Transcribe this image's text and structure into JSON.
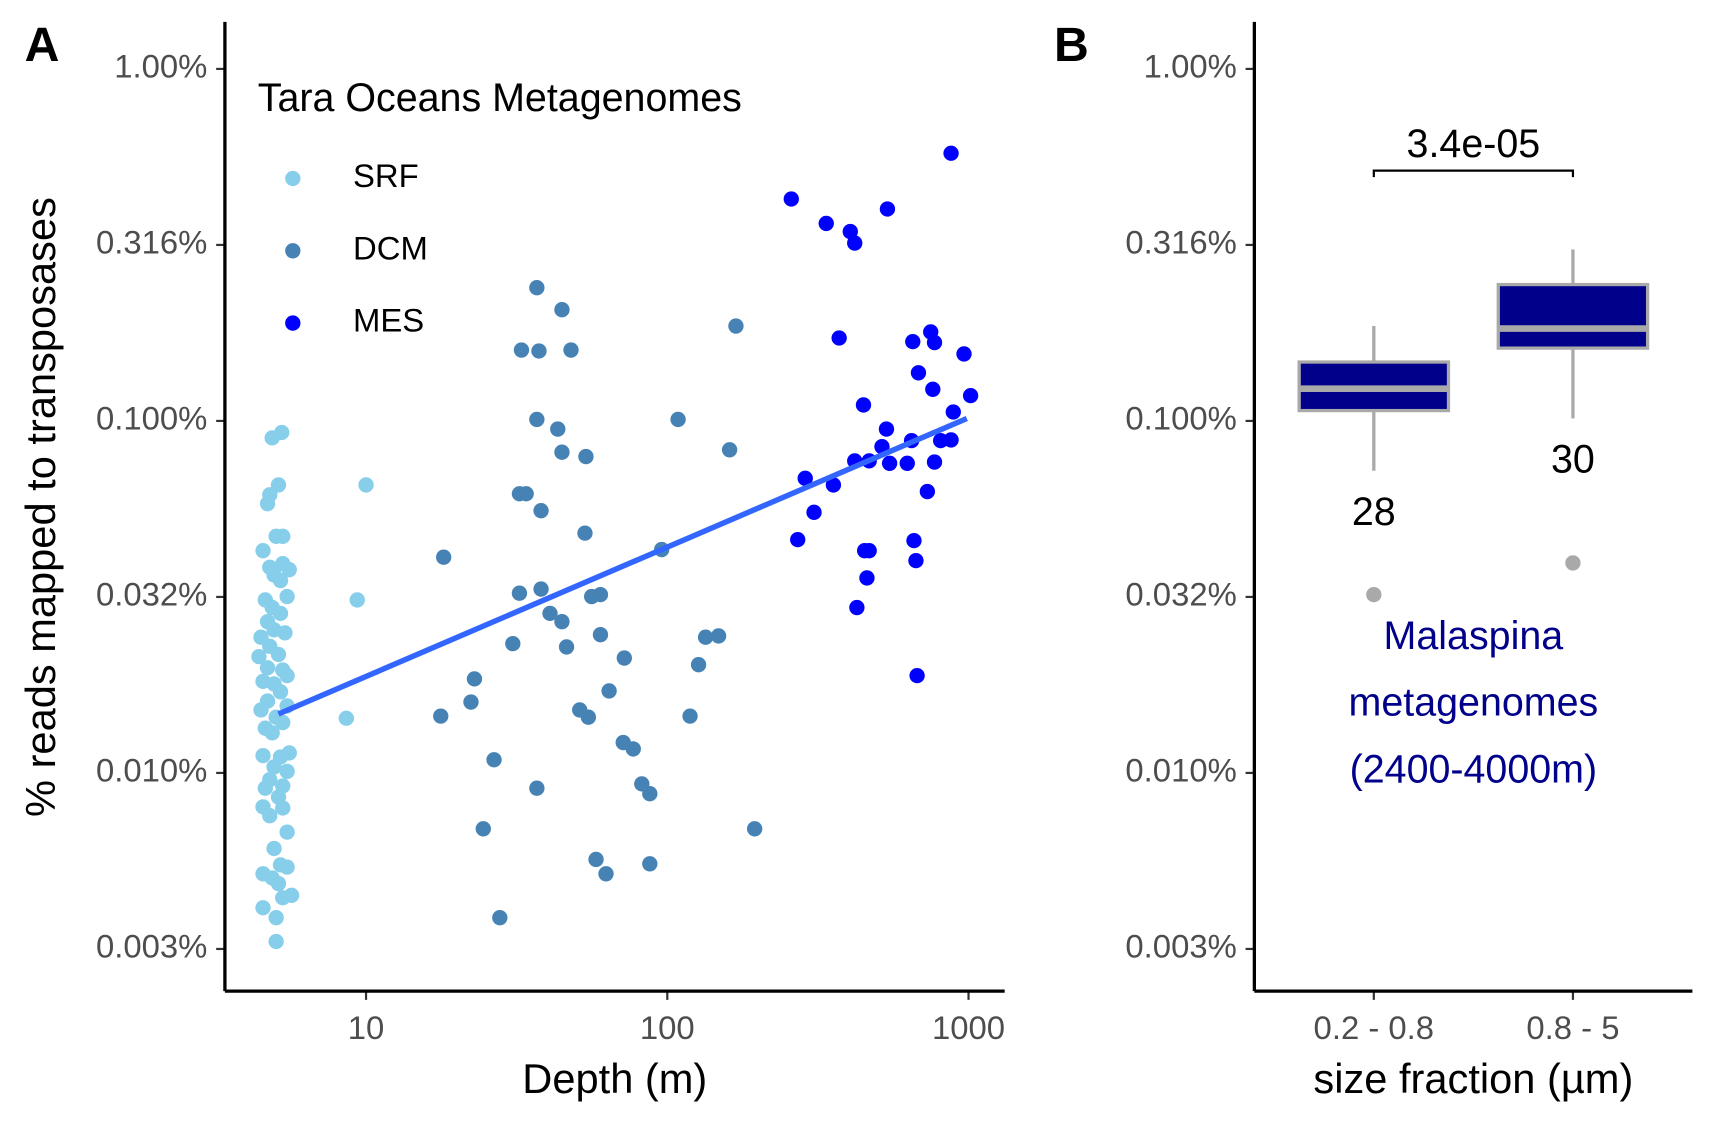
{
  "chart_data": [
    {
      "type": "scatter",
      "panel_label": "A",
      "x_label": "Depth (m)",
      "y_label": "% reads mapped to transposases",
      "xlog": true,
      "ylog": true,
      "xlim": [
        3.4,
        1318
      ],
      "ylim": [
        0.0024,
        1.36
      ],
      "xticks": [
        10,
        100,
        1000
      ],
      "yticks": [
        {
          "value": 1,
          "label": "1.00%"
        },
        {
          "value": 0.3162,
          "label": "0.316%"
        },
        {
          "value": 0.1,
          "label": "0.100%"
        },
        {
          "value": 0.03162,
          "label": "0.032%"
        },
        {
          "value": 0.01,
          "label": "0.010%"
        },
        {
          "value": 0.003162,
          "label": "0.003%"
        }
      ],
      "legend_title": "Tara Oceans Metagenomes",
      "legend_position": "top-left",
      "series": [
        {
          "name": "SRF",
          "color": "#87CEEB",
          "x": [
            4.88,
            5.25,
            4.71,
            5.12,
            4.79,
            5.03,
            5.29,
            4.55,
            4.79,
            5.29,
            5.56,
            4.95,
            5.2,
            5.47,
            4.63,
            4.88,
            5.2,
            4.71,
            4.95,
            5.38,
            4.48,
            4.79,
            5.12,
            4.41,
            4.71,
            5.29,
            5.47,
            4.55,
            4.95,
            5.2,
            4.71,
            5.47,
            4.48,
            5.03,
            5.29,
            4.63,
            4.88,
            5.56,
            4.55,
            5.2,
            4.95,
            5.47,
            4.79,
            5.29,
            4.63,
            5.12,
            4.55,
            5.29,
            4.79,
            5.47,
            4.95,
            4.55,
            5.2,
            5.47,
            4.88,
            5.12,
            5.66,
            4.55,
            5.29,
            5.03,
            5.03,
            8.6,
            9.35,
            10.0
          ],
          "values": [
            0.0895,
            0.0927,
            0.0582,
            0.0658,
            0.0617,
            0.047,
            0.047,
            0.0428,
            0.0384,
            0.0393,
            0.0378,
            0.0365,
            0.0352,
            0.0317,
            0.031,
            0.0295,
            0.0284,
            0.0269,
            0.0255,
            0.025,
            0.0243,
            0.0229,
            0.0217,
            0.0214,
            0.0199,
            0.0196,
            0.0189,
            0.0182,
            0.0179,
            0.017,
            0.016,
            0.0155,
            0.0151,
            0.0144,
            0.0139,
            0.0134,
            0.013,
            0.0114,
            0.0112,
            0.0111,
            0.0104,
            0.0101,
            0.00957,
            0.00918,
            0.00905,
            0.00854,
            0.00801,
            0.00795,
            0.00756,
            0.00679,
            0.0061,
            0.00517,
            0.00548,
            0.0054,
            0.00503,
            0.00485,
            0.00449,
            0.00414,
            0.00442,
            0.00388,
            0.00332,
            0.0143,
            0.031,
            0.0658
          ]
        },
        {
          "name": "DCM",
          "color": "#4682B4",
          "x": [
            36.9,
            44.7,
            32.8,
            37.5,
            47.9,
            169,
            36.9,
            43.3,
            44.7,
            53.7,
            108.6,
            161,
            32.3,
            34.0,
            38.1,
            53.3,
            18.1,
            32.3,
            38.1,
            56.1,
            60.0,
            95.8,
            40.8,
            44.7,
            30.7,
            46.3,
            60.0,
            134,
            148,
            72.0,
            127,
            22.9,
            64.1,
            17.7,
            22.3,
            51.2,
            54.7,
            119,
            71.4,
            77.1,
            26.6,
            82.3,
            87.5,
            36.9,
            195,
            24.5,
            58.0,
            62.6,
            87.5,
            27.8
          ],
          "values": [
            0.239,
            0.207,
            0.159,
            0.158,
            0.159,
            0.186,
            0.101,
            0.0948,
            0.0815,
            0.0792,
            0.101,
            0.0828,
            0.0621,
            0.0621,
            0.0556,
            0.048,
            0.041,
            0.0324,
            0.0333,
            0.0317,
            0.0321,
            0.0431,
            0.0284,
            0.0269,
            0.0233,
            0.0228,
            0.0247,
            0.0243,
            0.0245,
            0.0212,
            0.0203,
            0.0185,
            0.0171,
            0.0145,
            0.0159,
            0.0151,
            0.0144,
            0.0145,
            0.0122,
            0.0117,
            0.0109,
            0.00931,
            0.00873,
            0.00905,
            0.00694,
            0.00694,
            0.00568,
            0.00517,
            0.00552,
            0.00388
          ]
        },
        {
          "name": "MES",
          "color": "#0000FF",
          "x": [
            875,
            258,
            538,
            337,
            405,
            419,
            372,
            653,
            749,
            771,
            966,
            682,
            448,
            761,
            1016,
            890,
            534,
            808,
            875,
            647,
            516,
            419,
            468,
            547,
            626,
            771,
            287,
            356,
            730,
            307,
            271,
            452,
            468,
            659,
            669,
            460,
            426,
            675
          ],
          "values": [
            0.576,
            0.427,
            0.4,
            0.364,
            0.345,
            0.32,
            0.172,
            0.168,
            0.179,
            0.167,
            0.155,
            0.137,
            0.111,
            0.123,
            0.118,
            0.106,
            0.0948,
            0.0879,
            0.0883,
            0.0879,
            0.0845,
            0.077,
            0.077,
            0.0758,
            0.0758,
            0.0764,
            0.0687,
            0.0658,
            0.063,
            0.055,
            0.046,
            0.0428,
            0.0428,
            0.0457,
            0.0401,
            0.0358,
            0.0295,
            0.0189
          ]
        }
      ],
      "trend": {
        "color": "#3366FF",
        "x": [
          5.12,
          987
        ],
        "values": [
          0.0147,
          0.1016
        ]
      }
    },
    {
      "type": "box",
      "panel_label": "B",
      "x_label": "size fraction (µm)",
      "ylog": true,
      "ylim": [
        0.0024,
        1.36
      ],
      "yticks": [
        {
          "value": 1,
          "label": "1.00%"
        },
        {
          "value": 0.3162,
          "label": "0.316%"
        },
        {
          "value": 0.1,
          "label": "0.100%"
        },
        {
          "value": 0.03162,
          "label": "0.032%"
        },
        {
          "value": 0.01,
          "label": "0.010%"
        },
        {
          "value": 0.003162,
          "label": "0.003%"
        }
      ],
      "categories": [
        "0.2 - 0.8",
        "0.8 - 5"
      ],
      "color": "#00008B",
      "line_color": "#A9A9A9",
      "whisker_low": [
        0.0722,
        0.1017
      ],
      "q1": [
        0.107,
        0.161
      ],
      "median": [
        0.1235,
        0.183
      ],
      "q3": [
        0.147,
        0.244
      ],
      "whisker_high": [
        0.186,
        0.307
      ],
      "outliers": [
        0.0321,
        0.0395
      ],
      "n": [
        28,
        30
      ],
      "significance_label": "3.4e-05",
      "annotation": [
        "Malaspina",
        "metagenomes",
        "(2400-4000m)"
      ],
      "annotation_color": "#00008B"
    }
  ]
}
